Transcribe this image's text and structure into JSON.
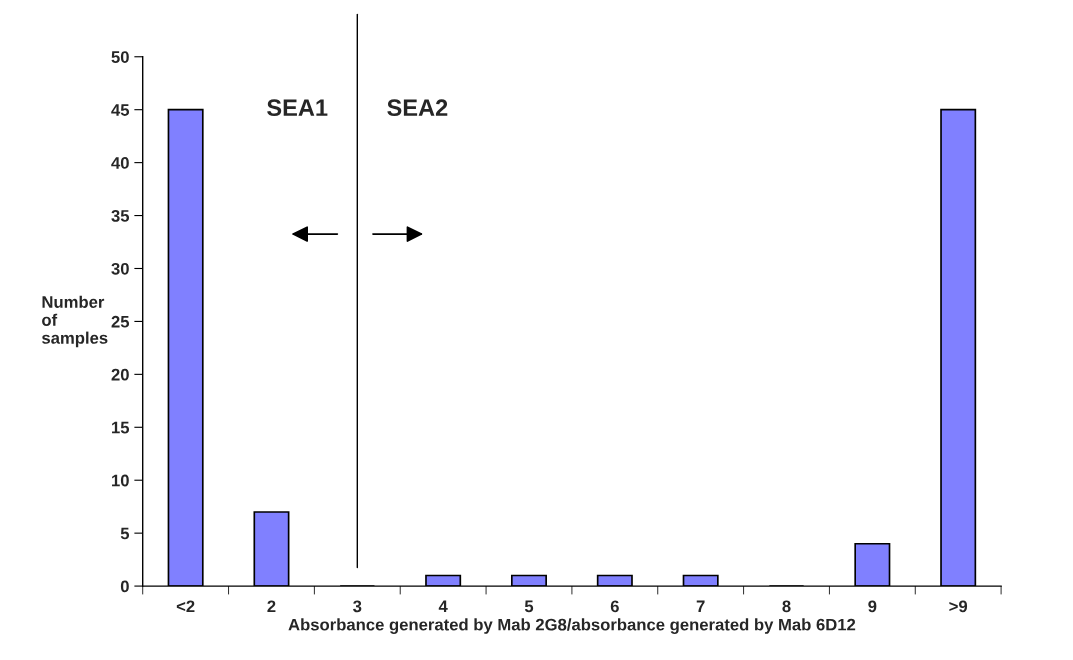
{
  "chart_data": {
    "type": "bar",
    "xlabel": "Absorbance generated by Mab 2G8/absorbance generated by Mab 6D12",
    "ylabel": "Number\nof\nsamples",
    "categories": [
      "<2",
      "2",
      "3",
      "4",
      "5",
      "6",
      "7",
      "8",
      "9",
      ">9"
    ],
    "values": [
      45,
      7,
      0,
      1,
      1,
      1,
      1,
      0,
      4,
      45
    ],
    "color": "#8080ff",
    "ylim": [
      0,
      50
    ],
    "yticks": [
      0,
      5,
      10,
      15,
      20,
      25,
      30,
      35,
      40,
      45,
      50
    ],
    "grid": false,
    "legend": false,
    "ref_lines": [
      {
        "axis": "x",
        "value": "3",
        "color": "#000000",
        "line_style": "solid"
      }
    ],
    "annotations": [
      "SEA1",
      "SEA2"
    ]
  }
}
